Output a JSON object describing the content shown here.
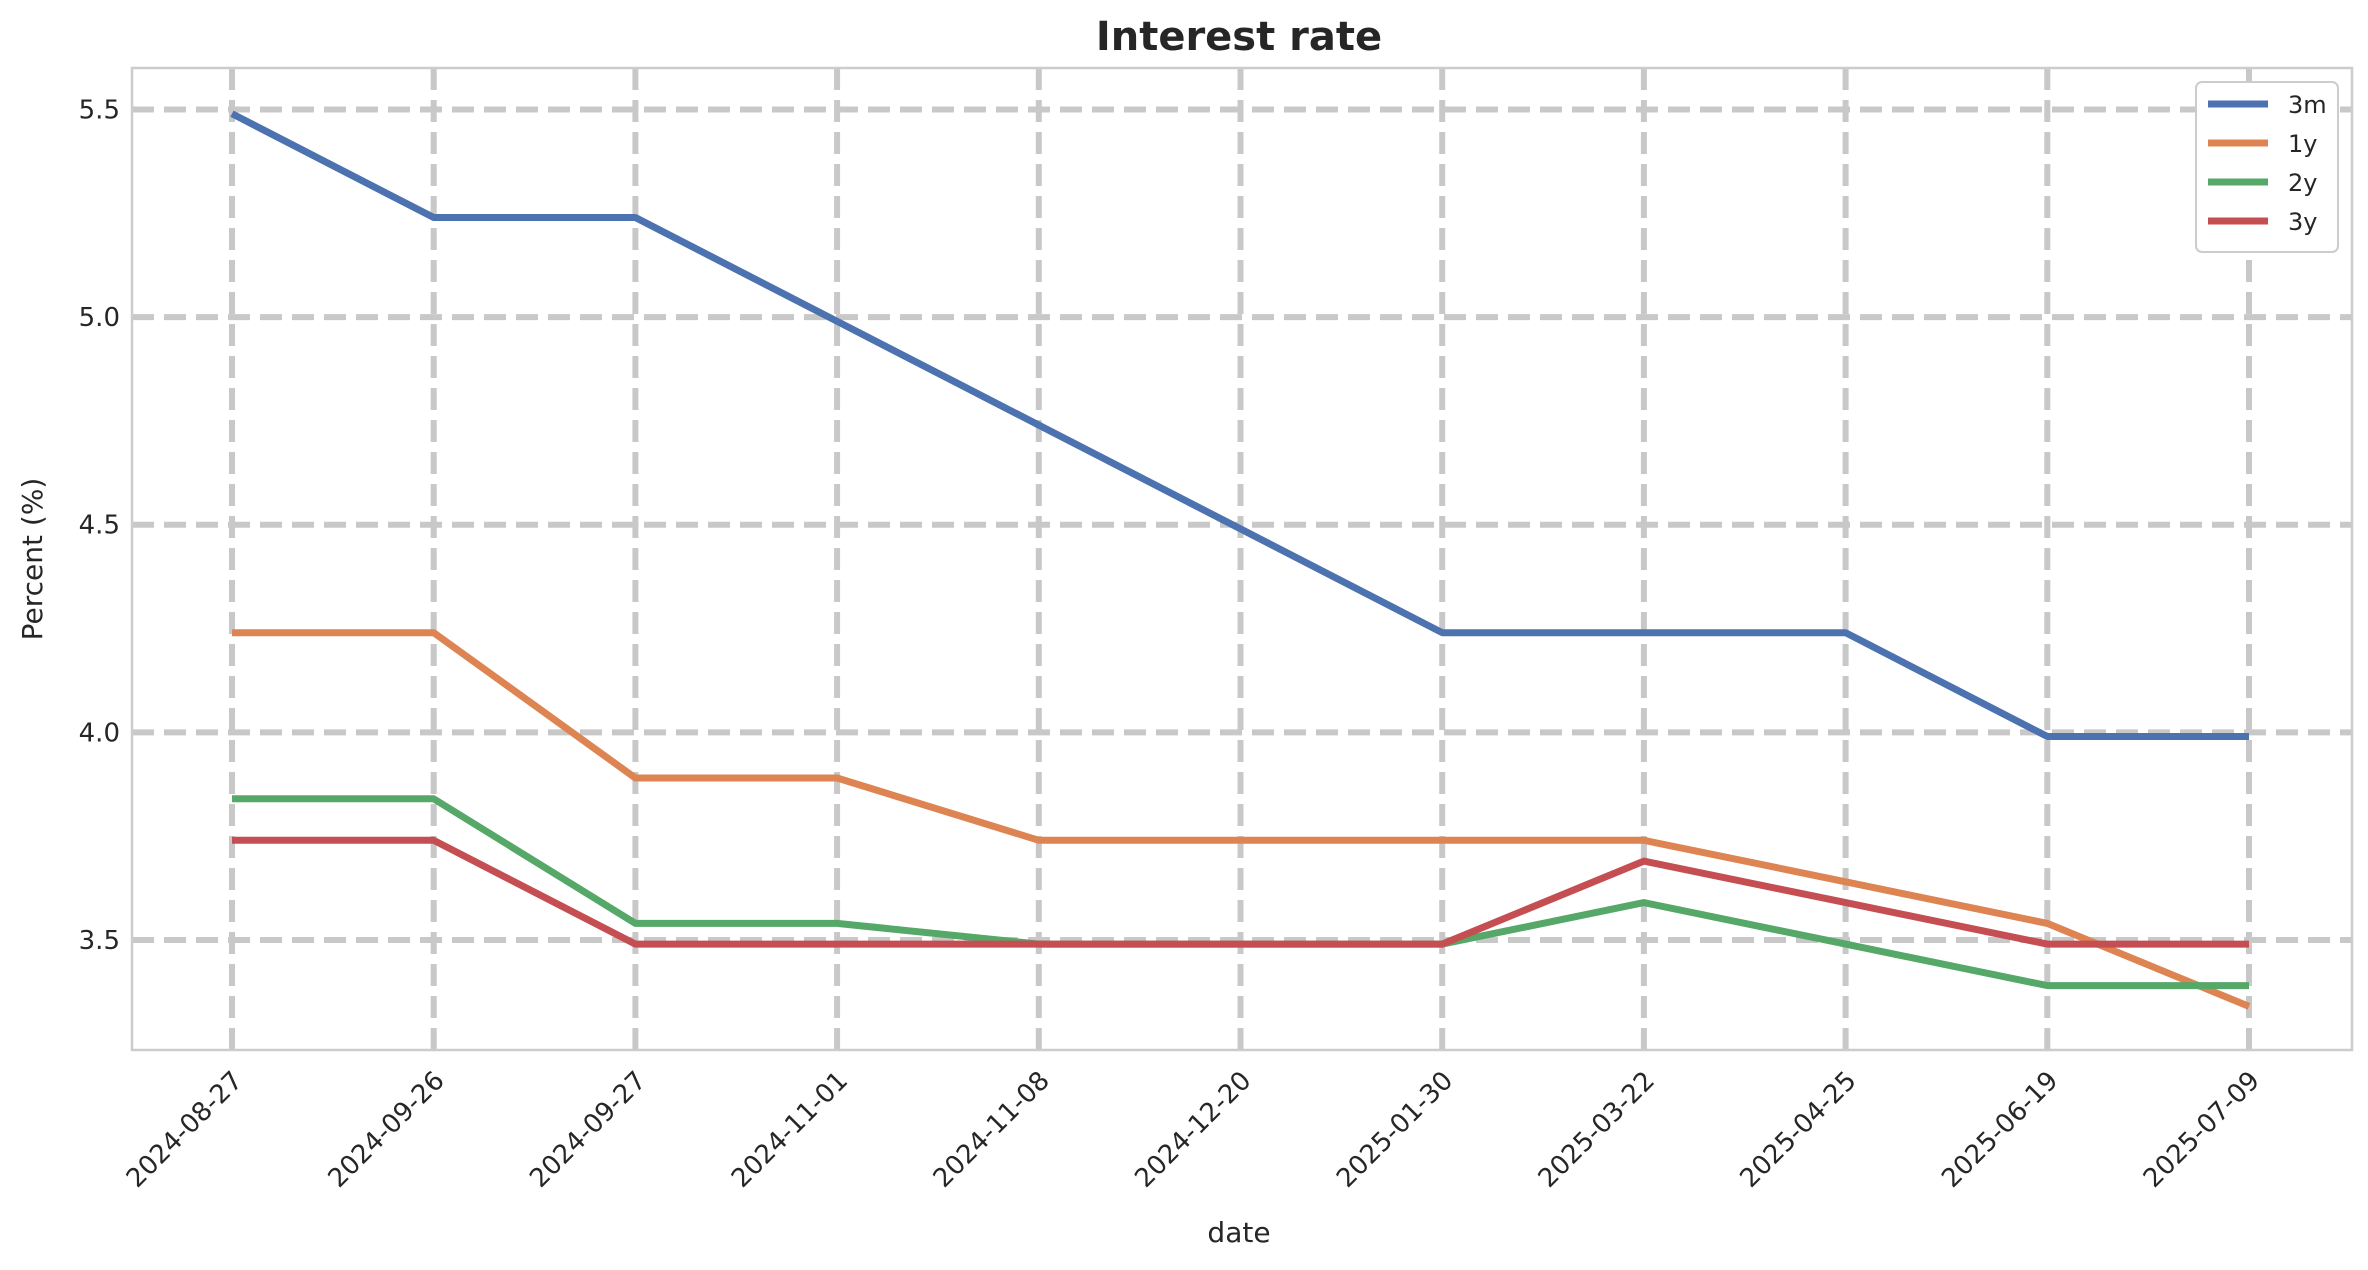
{
  "chart_data": {
    "type": "line",
    "title": "Interest rate",
    "xlabel": "date",
    "ylabel": "Percent (%)",
    "categories": [
      "2024-08-27",
      "2024-09-26",
      "2024-09-27",
      "2024-11-01",
      "2024-11-08",
      "2024-12-20",
      "2025-01-30",
      "2025-03-22",
      "2025-04-25",
      "2025-06-19",
      "2025-07-09"
    ],
    "ylim": [
      3.235,
      5.6
    ],
    "yticks": [
      "3.5",
      "4.0",
      "4.5",
      "5.0",
      "5.5"
    ],
    "grid": true,
    "legend_position": "top-right",
    "series": [
      {
        "name": "3m",
        "color": "#4c72b0",
        "values": [
          5.49,
          5.24,
          5.24,
          4.99,
          4.74,
          4.49,
          4.24,
          4.24,
          4.24,
          3.99,
          3.99
        ]
      },
      {
        "name": "1y",
        "color": "#dd8452",
        "values": [
          4.24,
          4.24,
          3.89,
          3.89,
          3.74,
          3.74,
          3.74,
          3.74,
          3.64,
          3.54,
          3.34
        ]
      },
      {
        "name": "2y",
        "color": "#55a868",
        "values": [
          3.84,
          3.84,
          3.54,
          3.54,
          3.49,
          3.49,
          3.49,
          3.59,
          3.49,
          3.39,
          3.39
        ]
      },
      {
        "name": "3y",
        "color": "#c44e52",
        "values": [
          3.74,
          3.74,
          3.49,
          3.49,
          3.49,
          3.49,
          3.49,
          3.69,
          3.59,
          3.49,
          3.49
        ]
      }
    ]
  }
}
